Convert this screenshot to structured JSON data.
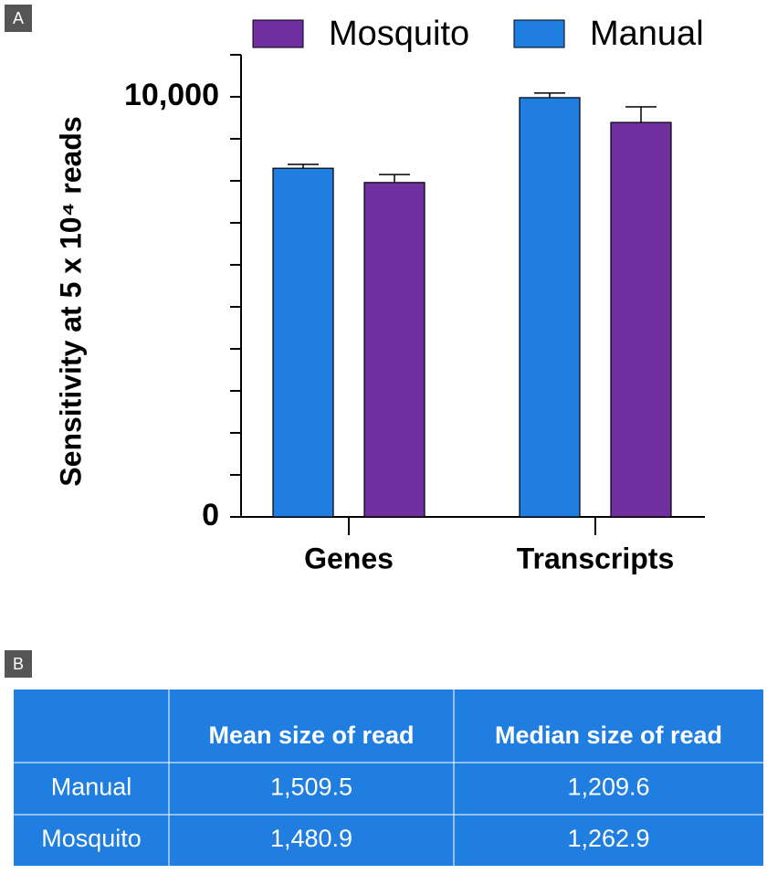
{
  "panel_labels": [
    "A",
    "B"
  ],
  "chart_data": {
    "type": "bar",
    "y_label": "Sensitivity at 5 x 10⁴ reads",
    "categories": [
      "Genes",
      "Transcripts"
    ],
    "series": [
      {
        "name": "Mosquito",
        "color": "#7030a0",
        "values": [
          7960,
          9390
        ],
        "errors": [
          190,
          370
        ]
      },
      {
        "name": "Manual",
        "color": "#1f7ee0",
        "values": [
          8300,
          9980
        ],
        "errors": [
          90,
          110
        ]
      }
    ],
    "ylim": [
      0,
      11000
    ],
    "yticks": [
      0,
      {
        "value": 10000,
        "label": "10,000"
      }
    ],
    "yminor": [
      1000,
      2000,
      3000,
      4000,
      5000,
      6000,
      7000,
      8000,
      9000,
      11000
    ],
    "legend": "top"
  },
  "table": {
    "columns": [
      "Mean size of read",
      "Median size of read"
    ],
    "rows": [
      [
        "Manual",
        "1,509.5",
        "1,209.6"
      ],
      [
        "Mosquito",
        "1,480.9",
        "1,262.9"
      ]
    ]
  }
}
